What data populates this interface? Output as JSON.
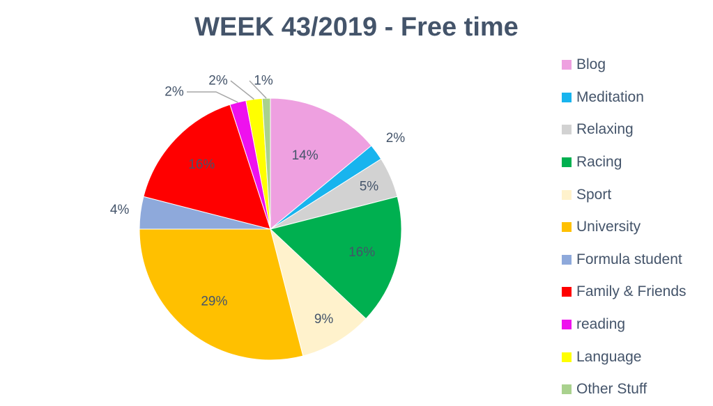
{
  "chart_data": {
    "type": "pie",
    "title": "WEEK 43/2019 - Free time",
    "legend_position": "right",
    "slices": [
      {
        "name": "Blog",
        "value": 14,
        "label": "14%",
        "color": "#eea0e0"
      },
      {
        "name": "Meditation",
        "value": 2,
        "label": "2%",
        "color": "#18b4ee"
      },
      {
        "name": "Relaxing",
        "value": 5,
        "label": "5%",
        "color": "#d2d2d2"
      },
      {
        "name": "Racing",
        "value": 16,
        "label": "16%",
        "color": "#00b050"
      },
      {
        "name": "Sport",
        "value": 9,
        "label": "9%",
        "color": "#fff2cc"
      },
      {
        "name": "University",
        "value": 29,
        "label": "29%",
        "color": "#ffc000"
      },
      {
        "name": "Formula student",
        "value": 4,
        "label": "4%",
        "color": "#8ea9db"
      },
      {
        "name": "Family & Friends",
        "value": 16,
        "label": "16%",
        "color": "#ff0000"
      },
      {
        "name": "reading",
        "value": 2,
        "label": "2%",
        "color": "#ee11ee"
      },
      {
        "name": "Language",
        "value": 2,
        "label": "2%",
        "color": "#ffff00"
      },
      {
        "name": "Other Stuff",
        "value": 1,
        "label": "1%",
        "color": "#a9d18e"
      }
    ]
  }
}
